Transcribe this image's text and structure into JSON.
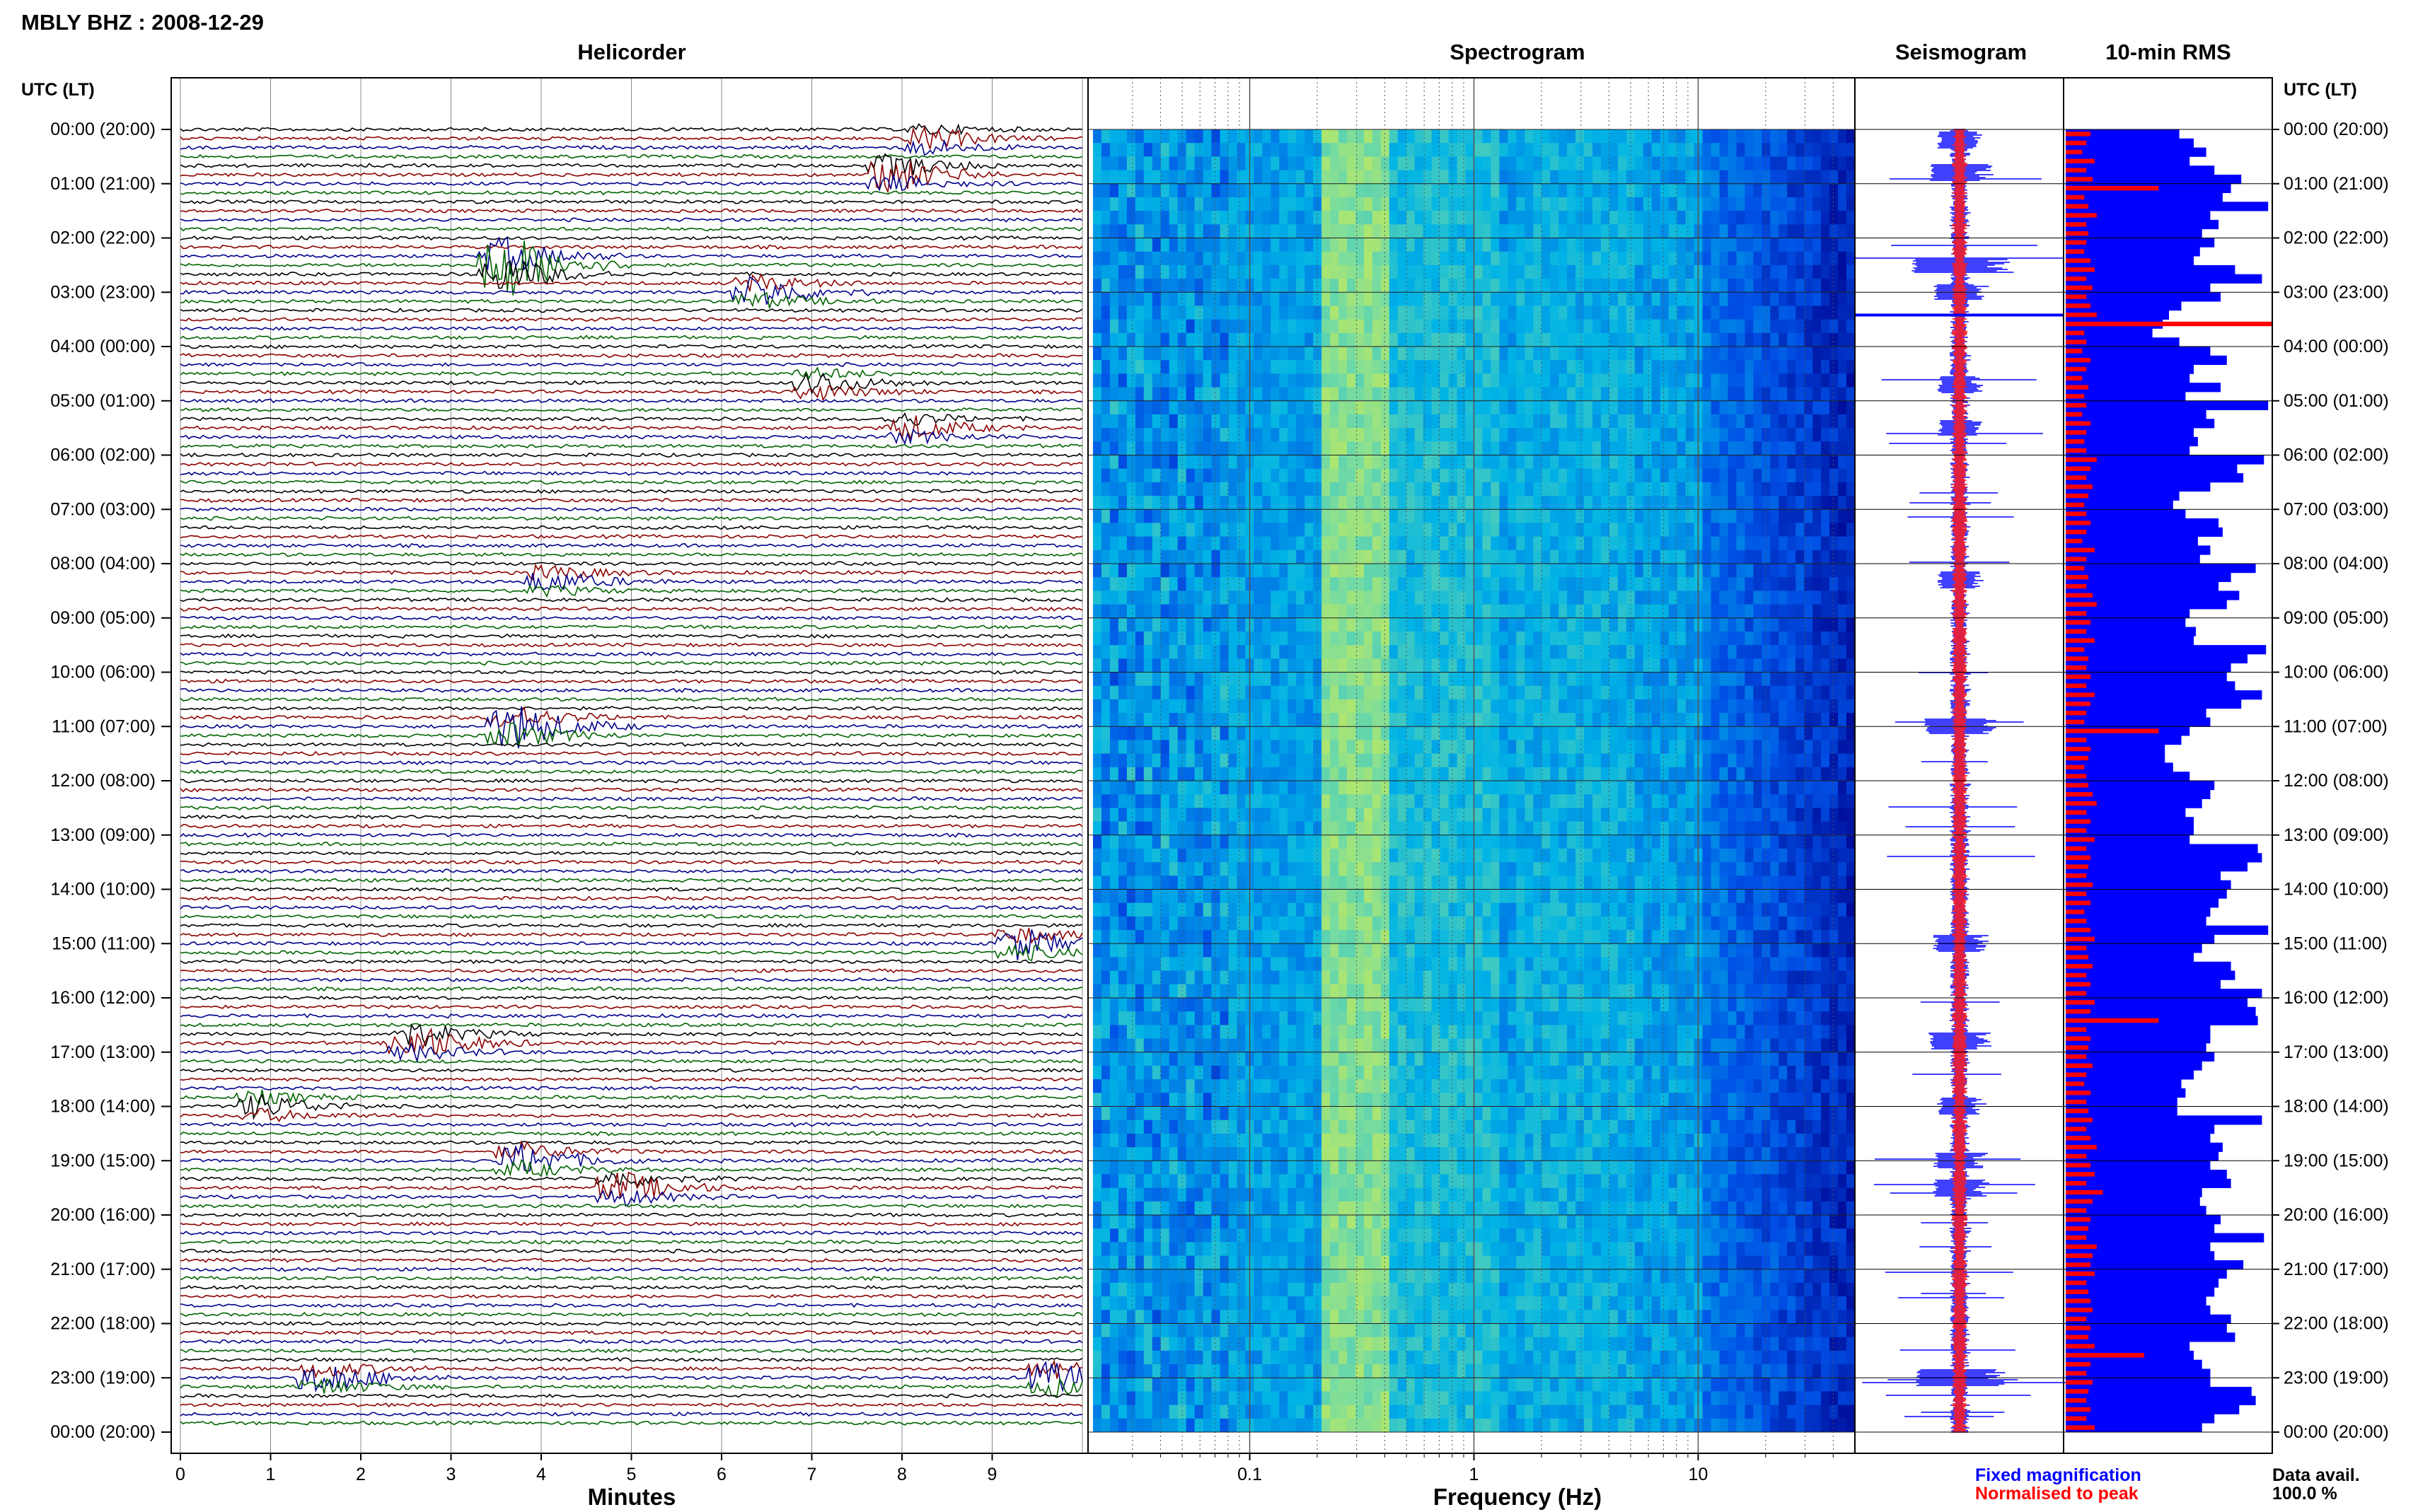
{
  "header": {
    "station": "MBLY BHZ : 2008-12-29"
  },
  "panels": {
    "helicorder": "Helicorder",
    "spectrogram": "Spectrogram",
    "seismogram": "Seismogram",
    "rms": "10-min RMS"
  },
  "axis_left_label": "UTC (LT)",
  "axis_right_label": "UTC (LT)",
  "time_labels": [
    "00:00 (20:00)",
    "01:00 (21:00)",
    "02:00 (22:00)",
    "03:00 (23:00)",
    "04:00 (00:00)",
    "05:00 (01:00)",
    "06:00 (02:00)",
    "07:00 (03:00)",
    "08:00 (04:00)",
    "09:00 (05:00)",
    "10:00 (06:00)",
    "11:00 (07:00)",
    "12:00 (08:00)",
    "13:00 (09:00)",
    "14:00 (10:00)",
    "15:00 (11:00)",
    "16:00 (12:00)",
    "17:00 (13:00)",
    "18:00 (14:00)",
    "19:00 (15:00)",
    "20:00 (16:00)",
    "21:00 (17:00)",
    "22:00 (18:00)",
    "23:00 (19:00)",
    "00:00 (20:00)"
  ],
  "helicorder_xlabel": "Minutes",
  "minute_ticks": [
    "0",
    "1",
    "2",
    "3",
    "4",
    "5",
    "6",
    "7",
    "8",
    "9"
  ],
  "spectrogram_xlabel": "Frequency (Hz)",
  "freq_ticks": [
    "0.1",
    "1",
    "10"
  ],
  "legend": {
    "fixed": "Fixed magnification",
    "normalised": "Normalised to peak"
  },
  "data_avail": {
    "label": "Data avail.",
    "value": "100.0 %"
  },
  "colors": {
    "trace_black": "#000000",
    "trace_red": "#8b0000",
    "trace_blue": "#00008b",
    "trace_green": "#006400",
    "fixed_blue": "#0000ff",
    "normalised_red": "#ff0000"
  },
  "chart_data": [
    {
      "type": "line",
      "name": "Helicorder",
      "x_unit": "Minutes",
      "xlim": [
        0,
        10
      ],
      "rows_per_hour": 6,
      "hours": 24,
      "trace_colors": [
        "black",
        "red",
        "blue",
        "green"
      ],
      "events": [
        {
          "hour": 0.2,
          "minute": 8.3,
          "amp": 3
        },
        {
          "hour": 0.8,
          "minute": 7.9,
          "amp": 5
        },
        {
          "hour": 2.5,
          "minute": 3.6,
          "amp": 9
        },
        {
          "hour": 3.0,
          "minute": 6.4,
          "amp": 4
        },
        {
          "hour": 4.7,
          "minute": 7.1,
          "amp": 3
        },
        {
          "hour": 5.5,
          "minute": 8.1,
          "amp": 3
        },
        {
          "hour": 8.3,
          "minute": 4.1,
          "amp": 3
        },
        {
          "hour": 11.0,
          "minute": 3.7,
          "amp": 6
        },
        {
          "hour": 15.0,
          "minute": 9.3,
          "amp": 4
        },
        {
          "hour": 16.8,
          "minute": 2.6,
          "amp": 5
        },
        {
          "hour": 18.0,
          "minute": 0.9,
          "amp": 3
        },
        {
          "hour": 19.0,
          "minute": 3.8,
          "amp": 4
        },
        {
          "hour": 19.5,
          "minute": 4.9,
          "amp": 4
        },
        {
          "hour": 23.0,
          "minute": 1.6,
          "amp": 4
        },
        {
          "hour": 23.0,
          "minute": 9.7,
          "amp": 4
        }
      ]
    },
    {
      "type": "heatmap",
      "name": "Spectrogram",
      "x_unit": "Frequency (Hz)",
      "x_scale": "log",
      "xlim": [
        0.02,
        50
      ],
      "bright_band_hz": [
        0.2,
        0.4
      ],
      "secondary_band_hz": [
        1.5,
        5
      ]
    },
    {
      "type": "line",
      "name": "Seismogram",
      "series": [
        "Fixed magnification",
        "Normalised to peak"
      ]
    },
    {
      "type": "bar",
      "name": "10-min RMS",
      "orientation": "horizontal",
      "series": [
        {
          "name": "Fixed magnification",
          "values": [
            0.55,
            0.62,
            0.68,
            0.6,
            0.72,
            0.85,
            0.8,
            0.76,
            0.98,
            0.7,
            0.74,
            0.66,
            0.72,
            0.65,
            0.62,
            0.82,
            0.95,
            0.7,
            0.75,
            0.56,
            0.5,
            0.47,
            0.42,
            0.55,
            0.7,
            0.78,
            0.62,
            0.6,
            0.75,
            0.58,
            0.98,
            0.68,
            0.72,
            0.62,
            0.64,
            0.6,
            0.96,
            0.83,
            0.86,
            0.7,
            0.55,
            0.52,
            0.58,
            0.74,
            0.76,
            0.64,
            0.7,
            0.65,
            0.92,
            0.8,
            0.74,
            0.84,
            0.78,
            0.6,
            0.58,
            0.63,
            0.62,
            0.97,
            0.88,
            0.8,
            0.78,
            0.82,
            0.95,
            0.85,
            0.68,
            0.7,
            0.6,
            0.56,
            0.48,
            0.48,
            0.52,
            0.6,
            0.72,
            0.7,
            0.66,
            0.58,
            0.62,
            0.62,
            0.6,
            0.93,
            0.95,
            0.88,
            0.75,
            0.8,
            0.78,
            0.74,
            0.7,
            0.68,
            0.98,
            0.72,
            0.66,
            0.62,
            0.8,
            0.82,
            0.75,
            0.95,
            0.88,
            0.92,
            0.93,
            0.7,
            0.7,
            0.68,
            0.72,
            0.66,
            0.62,
            0.56,
            0.58,
            0.54,
            0.54,
            0.95,
            0.72,
            0.7,
            0.76,
            0.74,
            0.7,
            0.78,
            0.8,
            0.66,
            0.65,
            0.68,
            0.75,
            0.72,
            0.96,
            0.7,
            0.72,
            0.86,
            0.78,
            0.74,
            0.72,
            0.68,
            0.7,
            0.8,
            0.78,
            0.82,
            0.6,
            0.62,
            0.66,
            0.7,
            0.7,
            0.9,
            0.92,
            0.84,
            0.72,
            0.66
          ]
        },
        {
          "name": "Normalised to peak",
          "values": [
            0.12,
            0.1,
            0.08,
            0.14,
            0.1,
            0.13,
            0.45,
            0.09,
            0.11,
            0.15,
            0.1,
            0.11,
            0.1,
            0.09,
            0.12,
            0.14,
            0.1,
            0.13,
            0.1,
            0.12,
            0.15,
            1.0,
            0.09,
            0.1,
            0.08,
            0.12,
            0.1,
            0.08,
            0.11,
            0.09,
            0.1,
            0.08,
            0.12,
            0.1,
            0.09,
            0.1,
            0.15,
            0.12,
            0.1,
            0.13,
            0.11,
            0.09,
            0.1,
            0.12,
            0.1,
            0.08,
            0.14,
            0.1,
            0.09,
            0.11,
            0.1,
            0.13,
            0.15,
            0.1,
            0.12,
            0.1,
            0.14,
            0.09,
            0.11,
            0.1,
            0.12,
            0.1,
            0.14,
            0.12,
            0.1,
            0.09,
            0.45,
            0.1,
            0.12,
            0.11,
            0.09,
            0.1,
            0.11,
            0.13,
            0.15,
            0.1,
            0.12,
            0.1,
            0.14,
            0.1,
            0.12,
            0.11,
            0.1,
            0.13,
            0.1,
            0.12,
            0.09,
            0.1,
            0.12,
            0.14,
            0.1,
            0.11,
            0.13,
            0.1,
            0.12,
            0.1,
            0.14,
            0.12,
            0.45,
            0.1,
            0.12,
            0.11,
            0.1,
            0.13,
            0.1,
            0.09,
            0.12,
            0.1,
            0.11,
            0.13,
            0.1,
            0.12,
            0.15,
            0.1,
            0.12,
            0.14,
            0.1,
            0.18,
            0.13,
            0.1,
            0.12,
            0.11,
            0.1,
            0.15,
            0.13,
            0.12,
            0.14,
            0.1,
            0.11,
            0.12,
            0.13,
            0.1,
            0.12,
            0.11,
            0.14,
            0.38,
            0.12,
            0.1,
            0.13,
            0.11,
            0.1,
            0.12,
            0.1,
            0.14
          ]
        }
      ]
    }
  ]
}
